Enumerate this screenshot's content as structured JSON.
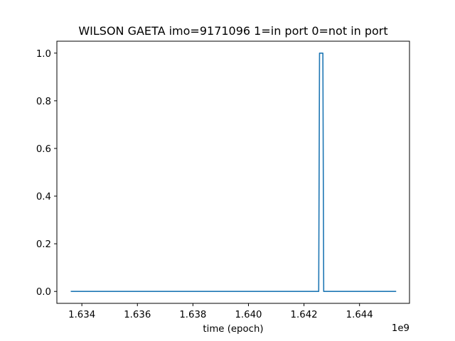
{
  "chart_data": {
    "type": "line",
    "title": "WILSON GAETA imo=9171096 1=in port 0=not in port",
    "xlabel": "time (epoch)",
    "ylabel": "",
    "x_offset_label": "1e9",
    "xlim": [
      1.6331,
      1.6458
    ],
    "ylim": [
      -0.05,
      1.05
    ],
    "x_ticks": [
      1.634,
      1.636,
      1.638,
      1.64,
      1.642,
      1.644
    ],
    "x_tick_labels": [
      "1.634",
      "1.636",
      "1.638",
      "1.640",
      "1.642",
      "1.644"
    ],
    "y_ticks": [
      0.0,
      0.2,
      0.4,
      0.6,
      0.8,
      1.0
    ],
    "y_tick_labels": [
      "0.0",
      "0.2",
      "0.4",
      "0.6",
      "0.8",
      "1.0"
    ],
    "grid": false,
    "series": [
      {
        "color": "#1f77b4",
        "x": [
          1.6336,
          1.64253,
          1.64256,
          1.64268,
          1.64271,
          1.64532
        ],
        "y": [
          0,
          0,
          1,
          1,
          0,
          0
        ]
      }
    ]
  }
}
